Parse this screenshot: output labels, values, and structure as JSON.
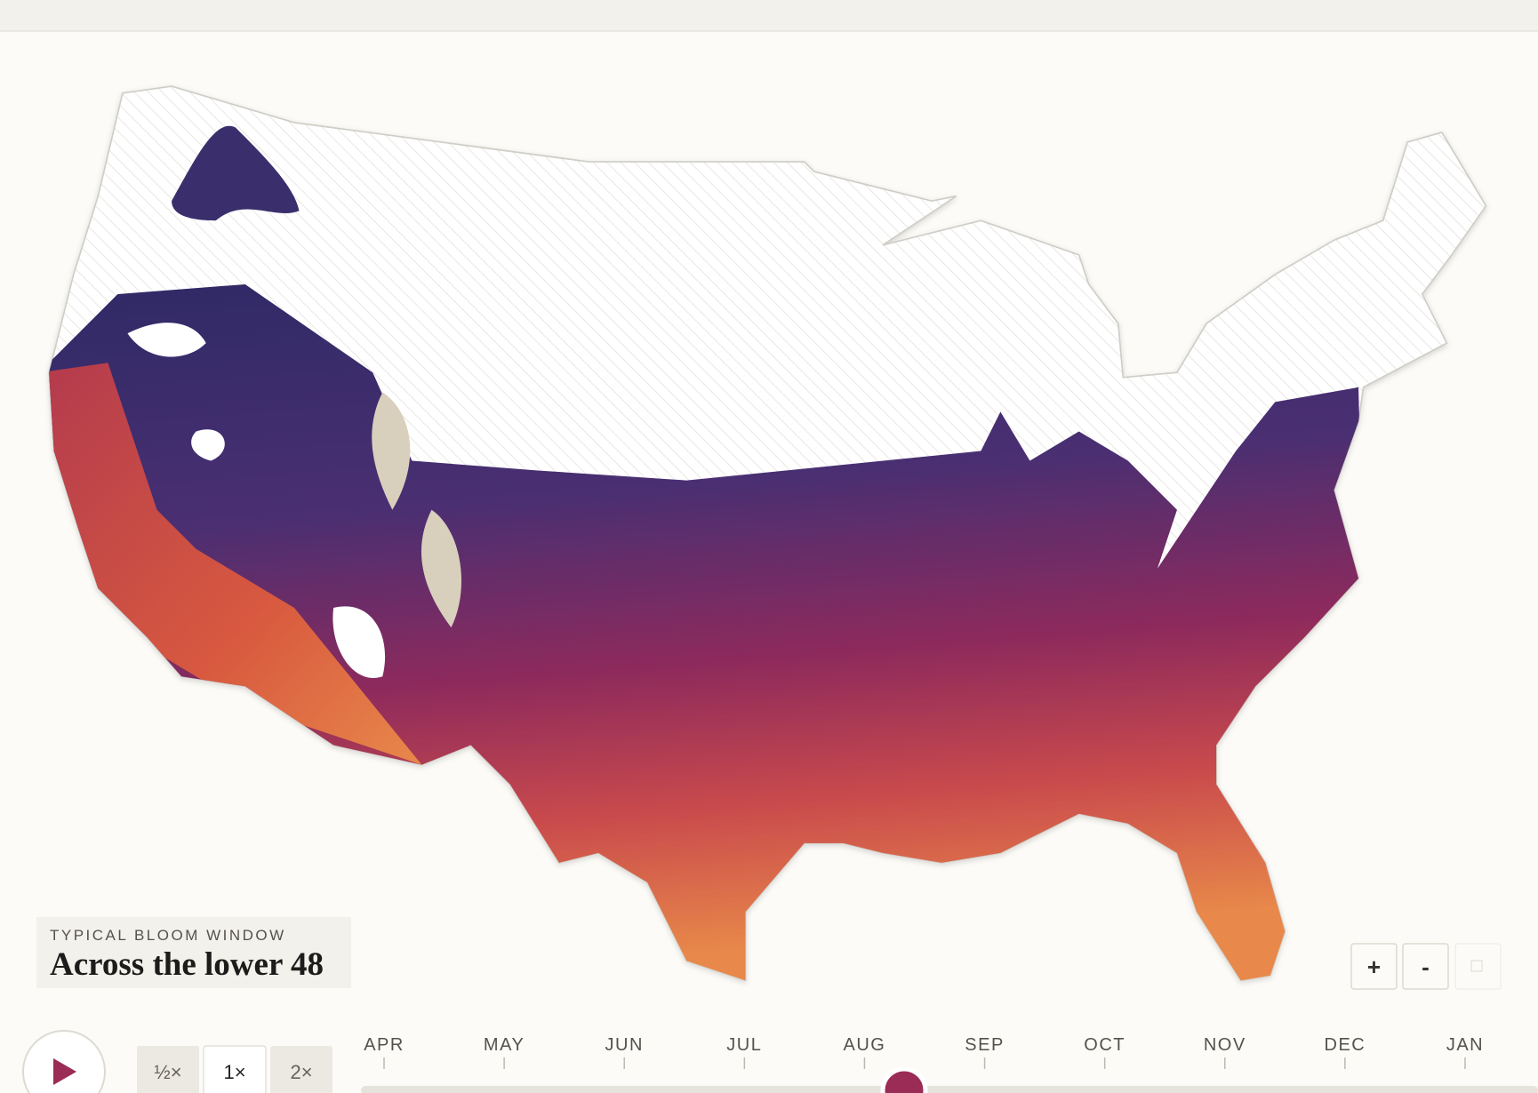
{
  "legend": {
    "label": "TYPICAL BLOOM WINDOW",
    "title": "Across the lower 48"
  },
  "speed_buttons": [
    "½×",
    "1×",
    "2×"
  ],
  "zoom_buttons": [
    "+",
    "-"
  ],
  "timeline": {
    "months": [
      "APR",
      "MAY",
      "JUN",
      "JUL",
      "AUG",
      "SEP",
      "OCT",
      "NOV",
      "DEC",
      "JAN"
    ]
  }
}
